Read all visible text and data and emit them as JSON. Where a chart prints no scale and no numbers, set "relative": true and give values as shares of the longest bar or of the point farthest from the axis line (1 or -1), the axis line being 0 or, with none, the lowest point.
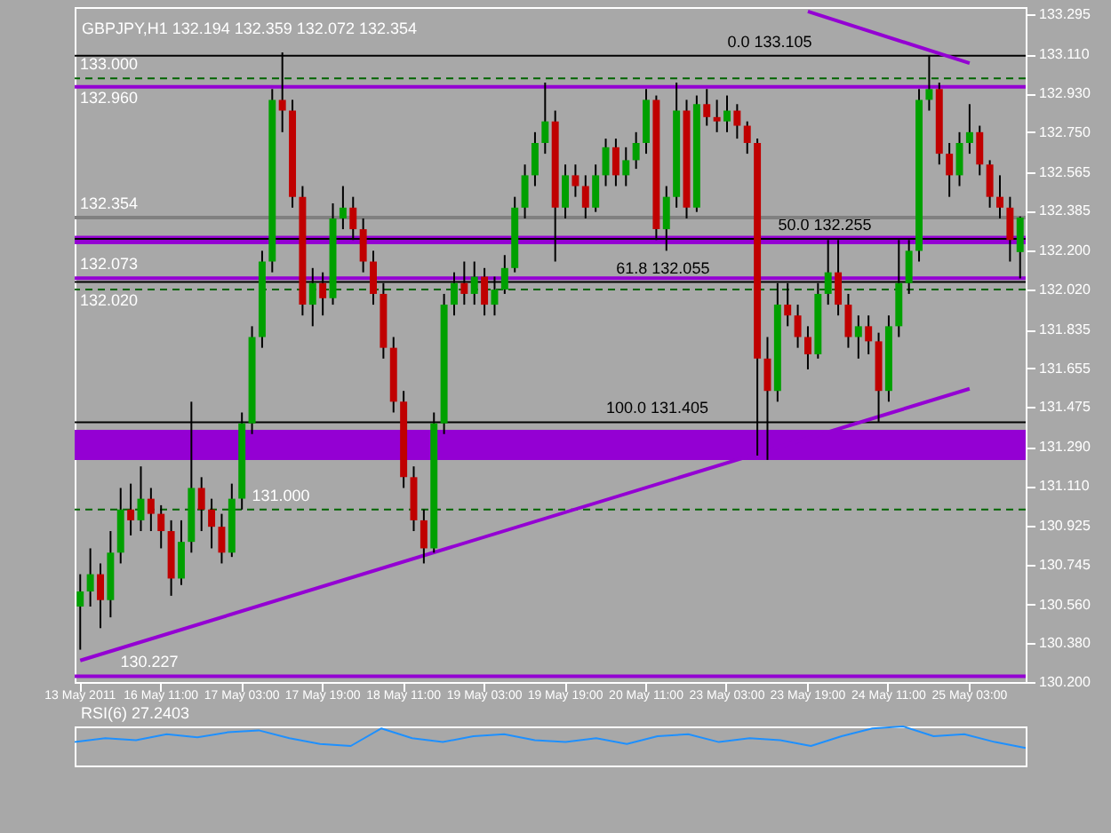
{
  "chart_data": [
    {
      "type": "candlestick",
      "title": "GBPJPY,H1  132.194 132.359 132.072 132.354",
      "categories": [
        "13 May 2011",
        null,
        null,
        null,
        null,
        null,
        null,
        null,
        "16 May 11:00",
        null,
        null,
        null,
        null,
        null,
        null,
        null,
        "17 May 03:00",
        null,
        null,
        null,
        null,
        null,
        null,
        null,
        "17 May 19:00",
        null,
        null,
        null,
        null,
        null,
        null,
        null,
        "18 May 11:00",
        null,
        null,
        null,
        null,
        null,
        null,
        null,
        "19 May 03:00",
        null,
        null,
        null,
        null,
        null,
        null,
        null,
        "19 May 19:00",
        null,
        null,
        null,
        null,
        null,
        null,
        null,
        "20 May 11:00",
        null,
        null,
        null,
        null,
        null,
        null,
        null,
        "23 May 03:00",
        null,
        null,
        null,
        null,
        null,
        null,
        null,
        "23 May 19:00",
        null,
        null,
        null,
        null,
        null,
        null,
        null,
        "24 May 11:00",
        null,
        null,
        null,
        null,
        null,
        null,
        null,
        "25 May 03:00",
        null,
        null,
        null,
        null,
        null
      ],
      "ohlc": [
        [
          130.55,
          130.7,
          130.35,
          130.62
        ],
        [
          130.62,
          130.82,
          130.55,
          130.7
        ],
        [
          130.7,
          130.75,
          130.45,
          130.58
        ],
        [
          130.58,
          130.9,
          130.5,
          130.8
        ],
        [
          130.8,
          131.1,
          130.75,
          131.0
        ],
        [
          131.0,
          131.12,
          130.88,
          130.95
        ],
        [
          130.95,
          131.2,
          130.9,
          131.05
        ],
        [
          131.05,
          131.1,
          130.9,
          130.98
        ],
        [
          130.98,
          131.02,
          130.82,
          130.9
        ],
        [
          130.9,
          130.95,
          130.6,
          130.68
        ],
        [
          130.68,
          130.95,
          130.65,
          130.85
        ],
        [
          130.85,
          131.5,
          130.8,
          131.1
        ],
        [
          131.1,
          131.15,
          130.9,
          131.0
        ],
        [
          131.0,
          131.05,
          130.82,
          130.92
        ],
        [
          130.92,
          130.98,
          130.75,
          130.8
        ],
        [
          130.8,
          131.12,
          130.78,
          131.05
        ],
        [
          131.05,
          131.45,
          131.0,
          131.4
        ],
        [
          131.4,
          131.85,
          131.35,
          131.8
        ],
        [
          131.8,
          132.2,
          131.75,
          132.15
        ],
        [
          132.15,
          132.95,
          132.1,
          132.9
        ],
        [
          132.9,
          133.12,
          132.75,
          132.85
        ],
        [
          132.85,
          132.9,
          132.4,
          132.45
        ],
        [
          132.45,
          132.5,
          131.9,
          131.95
        ],
        [
          131.95,
          132.12,
          131.85,
          132.05
        ],
        [
          132.05,
          132.1,
          131.9,
          131.98
        ],
        [
          131.98,
          132.42,
          131.95,
          132.35
        ],
        [
          132.35,
          132.5,
          132.3,
          132.4
        ],
        [
          132.4,
          132.45,
          132.25,
          132.3
        ],
        [
          132.3,
          132.35,
          132.1,
          132.15
        ],
        [
          132.15,
          132.2,
          131.95,
          132.0
        ],
        [
          132.0,
          132.05,
          131.7,
          131.75
        ],
        [
          131.75,
          131.8,
          131.45,
          131.5
        ],
        [
          131.5,
          131.55,
          131.1,
          131.15
        ],
        [
          131.15,
          131.2,
          130.9,
          130.95
        ],
        [
          130.95,
          131.0,
          130.75,
          130.82
        ],
        [
          130.82,
          131.45,
          130.8,
          131.4
        ],
        [
          131.4,
          132.0,
          131.35,
          131.95
        ],
        [
          131.95,
          132.1,
          131.9,
          132.05
        ],
        [
          132.05,
          132.15,
          131.95,
          132.0
        ],
        [
          132.0,
          132.15,
          131.95,
          132.08
        ],
        [
          132.08,
          132.12,
          131.9,
          131.95
        ],
        [
          131.95,
          132.08,
          131.9,
          132.02
        ],
        [
          132.02,
          132.18,
          132.0,
          132.12
        ],
        [
          132.12,
          132.45,
          132.1,
          132.4
        ],
        [
          132.4,
          132.6,
          132.35,
          132.55
        ],
        [
          132.55,
          132.75,
          132.5,
          132.7
        ],
        [
          132.7,
          132.98,
          132.65,
          132.8
        ],
        [
          132.8,
          132.85,
          132.15,
          132.4
        ],
        [
          132.4,
          132.6,
          132.35,
          132.55
        ],
        [
          132.55,
          132.6,
          132.45,
          132.5
        ],
        [
          132.5,
          132.55,
          132.35,
          132.4
        ],
        [
          132.4,
          132.6,
          132.38,
          132.55
        ],
        [
          132.55,
          132.72,
          132.5,
          132.68
        ],
        [
          132.68,
          132.72,
          132.5,
          132.55
        ],
        [
          132.55,
          132.68,
          132.5,
          132.62
        ],
        [
          132.62,
          132.75,
          132.58,
          132.7
        ],
        [
          132.7,
          132.95,
          132.65,
          132.9
        ],
        [
          132.9,
          132.92,
          132.25,
          132.3
        ],
        [
          132.3,
          132.5,
          132.2,
          132.45
        ],
        [
          132.45,
          132.98,
          132.4,
          132.85
        ],
        [
          132.85,
          132.9,
          132.35,
          132.4
        ],
        [
          132.4,
          132.92,
          132.38,
          132.88
        ],
        [
          132.88,
          132.95,
          132.78,
          132.82
        ],
        [
          132.82,
          132.9,
          132.75,
          132.8
        ],
        [
          132.8,
          132.92,
          132.75,
          132.85
        ],
        [
          132.85,
          132.88,
          132.72,
          132.78
        ],
        [
          132.78,
          132.8,
          132.65,
          132.7
        ],
        [
          132.7,
          132.72,
          131.25,
          131.7
        ],
        [
          131.7,
          131.8,
          131.23,
          131.55
        ],
        [
          131.55,
          132.05,
          131.5,
          131.95
        ],
        [
          131.95,
          132.05,
          131.85,
          131.9
        ],
        [
          131.9,
          131.95,
          131.75,
          131.8
        ],
        [
          131.8,
          131.85,
          131.65,
          131.72
        ],
        [
          131.72,
          132.05,
          131.7,
          132.0
        ],
        [
          132.0,
          132.25,
          131.95,
          132.1
        ],
        [
          132.1,
          132.25,
          131.9,
          131.95
        ],
        [
          131.95,
          132.0,
          131.75,
          131.8
        ],
        [
          131.8,
          131.9,
          131.7,
          131.85
        ],
        [
          131.85,
          131.9,
          131.72,
          131.78
        ],
        [
          131.78,
          131.82,
          131.405,
          131.55
        ],
        [
          131.55,
          131.9,
          131.5,
          131.85
        ],
        [
          131.85,
          132.25,
          131.8,
          132.05
        ],
        [
          132.05,
          132.25,
          132.0,
          132.2
        ],
        [
          132.2,
          132.95,
          132.15,
          132.9
        ],
        [
          132.9,
          133.105,
          132.85,
          132.95
        ],
        [
          132.95,
          132.98,
          132.6,
          132.65
        ],
        [
          132.65,
          132.7,
          132.45,
          132.55
        ],
        [
          132.55,
          132.75,
          132.5,
          132.7
        ],
        [
          132.7,
          132.88,
          132.65,
          132.75
        ],
        [
          132.75,
          132.78,
          132.55,
          132.6
        ],
        [
          132.6,
          132.62,
          132.4,
          132.45
        ],
        [
          132.45,
          132.55,
          132.35,
          132.4
        ],
        [
          132.4,
          132.45,
          132.15,
          132.25
        ],
        [
          132.194,
          132.359,
          132.072,
          132.354
        ]
      ],
      "colors": [
        "#00a000",
        "#00a000",
        "#c00000",
        "#00a000",
        "#00a000",
        "#c00000",
        "#00a000",
        "#c00000",
        "#c00000",
        "#c00000",
        "#00a000",
        "#00a000",
        "#c00000",
        "#c00000",
        "#c00000",
        "#00a000",
        "#00a000",
        "#00a000",
        "#00a000",
        "#00a000",
        "#c00000",
        "#c00000",
        "#c00000",
        "#00a000",
        "#c00000",
        "#00a000",
        "#00a000",
        "#c00000",
        "#c00000",
        "#c00000",
        "#c00000",
        "#c00000",
        "#c00000",
        "#c00000",
        "#c00000",
        "#00a000",
        "#00a000",
        "#00a000",
        "#c00000",
        "#00a000",
        "#c00000",
        "#00a000",
        "#00a000",
        "#00a000",
        "#00a000",
        "#00a000",
        "#00a000",
        "#c00000",
        "#00a000",
        "#c00000",
        "#c00000",
        "#00a000",
        "#00a000",
        "#c00000",
        "#00a000",
        "#00a000",
        "#00a000",
        "#c00000",
        "#00a000",
        "#00a000",
        "#c00000",
        "#00a000",
        "#c00000",
        "#c00000",
        "#00a000",
        "#c00000",
        "#c00000",
        "#c00000",
        "#c00000",
        "#00a000",
        "#c00000",
        "#c00000",
        "#c00000",
        "#00a000",
        "#00a000",
        "#c00000",
        "#c00000",
        "#00a000",
        "#c00000",
        "#c00000",
        "#00a000",
        "#00a000",
        "#00a000",
        "#00a000",
        "#00a000",
        "#c00000",
        "#c00000",
        "#00a000",
        "#00a000",
        "#c00000",
        "#c00000",
        "#c00000",
        "#c00000",
        "#00a000"
      ],
      "ylim": [
        130.2,
        133.33
      ],
      "yticks": [
        {
          "value": 133.295,
          "label": "133.295"
        },
        {
          "value": 133.11,
          "label": "133.110"
        },
        {
          "value": 132.93,
          "label": "132.930"
        },
        {
          "value": 132.75,
          "label": "132.750"
        },
        {
          "value": 132.565,
          "label": "132.565"
        },
        {
          "value": 132.385,
          "label": "132.385"
        },
        {
          "value": 132.2,
          "label": "132.200"
        },
        {
          "value": 132.02,
          "label": "132.020"
        },
        {
          "value": 131.835,
          "label": "131.835"
        },
        {
          "value": 131.655,
          "label": "131.655"
        },
        {
          "value": 131.475,
          "label": "131.475"
        },
        {
          "value": 131.29,
          "label": "131.290"
        },
        {
          "value": 131.11,
          "label": "131.110"
        },
        {
          "value": 130.925,
          "label": "130.925"
        },
        {
          "value": 130.745,
          "label": "130.745"
        },
        {
          "value": 130.56,
          "label": "130.560"
        },
        {
          "value": 130.38,
          "label": "130.380"
        },
        {
          "value": 130.2,
          "label": "130.200"
        }
      ],
      "bands": [
        {
          "axis": "y",
          "from": 131.23,
          "to": 131.37,
          "color": "#9400d3"
        },
        {
          "axis": "y",
          "from": 132.23,
          "to": 132.27,
          "color": "#9400d3"
        }
      ],
      "ref_lines": [
        {
          "axis": "y",
          "value": 133.0,
          "label": "133.000",
          "color": "#006400",
          "line_style": "dashed"
        },
        {
          "axis": "y",
          "value": 132.96,
          "label": "132.960",
          "color": "#9400d3",
          "line_style": "solid"
        },
        {
          "axis": "y",
          "value": 132.073,
          "label": "132.073",
          "color": "#9400d3",
          "line_style": "solid"
        },
        {
          "axis": "y",
          "value": 132.02,
          "label": "132.020",
          "color": "#006400",
          "line_style": "dashed"
        },
        {
          "axis": "y",
          "value": 131.0,
          "label": "131.000",
          "color": "#006400",
          "line_style": "dashed"
        },
        {
          "axis": "y",
          "value": 130.227,
          "label": "130.227",
          "color": "#9400d3",
          "line_style": "solid"
        },
        {
          "axis": "y",
          "value": 133.105,
          "label": "0.0  133.105",
          "color": "#000000",
          "line_style": "solid"
        },
        {
          "axis": "y",
          "value": 132.255,
          "label": "50.0  132.255",
          "color": "#000000",
          "line_style": "solid"
        },
        {
          "axis": "y",
          "value": 132.055,
          "label": "61.8  132.055",
          "color": "#000000",
          "line_style": "solid"
        },
        {
          "axis": "y",
          "value": 131.405,
          "label": "100.0  131.405",
          "color": "#000000",
          "line_style": "solid"
        },
        {
          "axis": "y",
          "value": 132.354,
          "label": "132.354",
          "color": "#808080",
          "line_style": "solid"
        }
      ],
      "series": [
        {
          "type": "line",
          "x": [
            "13 May 2011",
            "25 May 03:00"
          ],
          "values": [
            130.3,
            131.56
          ],
          "color": "#9400d3"
        },
        {
          "type": "line",
          "x": [
            "23 May 19:00",
            "25 May 03:00"
          ],
          "values": [
            133.31,
            133.07
          ],
          "color": "#9400d3"
        }
      ],
      "grid": false
    },
    {
      "type": "line",
      "title": "RSI(6) 27.2403",
      "relative": true,
      "categories": [
        null,
        null,
        null,
        null,
        null,
        null,
        null,
        null,
        null,
        null,
        null,
        null,
        null,
        null,
        null,
        null,
        null,
        null,
        null,
        null,
        null,
        null,
        null,
        null,
        null,
        null,
        null,
        null,
        null,
        null,
        null,
        null
      ],
      "series": [
        {
          "color": "#1e90ff",
          "values": [
            0.6,
            0.7,
            0.65,
            0.8,
            0.72,
            0.85,
            0.9,
            0.7,
            0.55,
            0.5,
            0.95,
            0.7,
            0.6,
            0.75,
            0.8,
            0.65,
            0.6,
            0.7,
            0.55,
            0.75,
            0.8,
            0.6,
            0.7,
            0.65,
            0.5,
            0.75,
            0.95,
            1.0,
            0.75,
            0.8,
            0.6,
            0.45
          ]
        }
      ],
      "grid": false
    }
  ]
}
